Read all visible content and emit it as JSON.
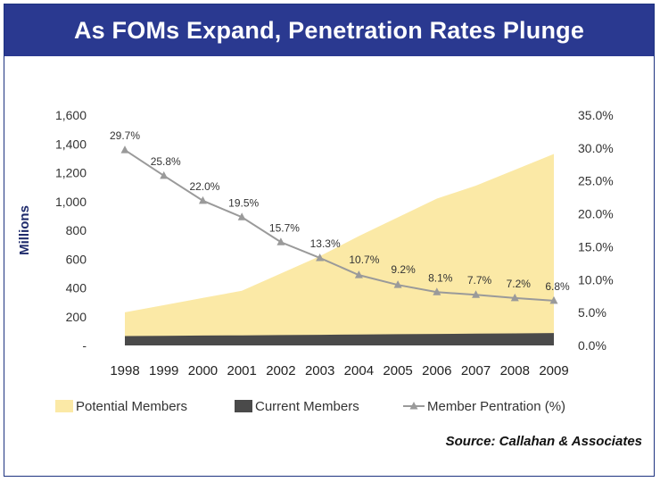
{
  "chart_data": {
    "type": "area",
    "title": "As FOMs Expand, Penetration Rates Plunge",
    "ylabel": "Millions",
    "xlabel": "",
    "categories": [
      "1998",
      "1999",
      "2000",
      "2001",
      "2002",
      "2003",
      "2004",
      "2005",
      "2006",
      "2007",
      "2008",
      "2009"
    ],
    "ylim": [
      0,
      1600
    ],
    "y_ticks": [
      0,
      200,
      400,
      600,
      800,
      1000,
      1200,
      1400,
      1600
    ],
    "y_tick_labels": [
      "-",
      "200",
      "400",
      "600",
      "800",
      "1,000",
      "1,200",
      "1,400",
      "1,600"
    ],
    "y2lim": [
      0,
      35
    ],
    "y2_ticks": [
      0,
      5,
      10,
      15,
      20,
      25,
      30,
      35
    ],
    "y2_tick_labels": [
      "0.0%",
      "5.0%",
      "10.0%",
      "15.0%",
      "20.0%",
      "25.0%",
      "30.0%",
      "35.0%"
    ],
    "series": [
      {
        "name": "Potential Members",
        "kind": "area",
        "axis": "left",
        "color": "#fbe9a6",
        "values": [
          230,
          280,
          330,
          380,
          500,
          620,
          760,
          890,
          1020,
          1110,
          1220,
          1330
        ]
      },
      {
        "name": "Current Members",
        "kind": "area",
        "axis": "left",
        "color": "#4a4a4a",
        "values": [
          65,
          67,
          69,
          70,
          72,
          74,
          76,
          78,
          80,
          82,
          84,
          86
        ]
      },
      {
        "name": "Member Pentration (%)",
        "kind": "line",
        "axis": "right",
        "color": "#9a9a9a",
        "values": [
          29.7,
          25.8,
          22.0,
          19.5,
          15.7,
          13.3,
          10.7,
          9.2,
          8.1,
          7.7,
          7.2,
          6.8
        ],
        "labels": [
          "29.7%",
          "25.8%",
          "22.0%",
          "19.5%",
          "15.7%",
          "13.3%",
          "10.7%",
          "9.2%",
          "8.1%",
          "7.7%",
          "7.2%",
          "6.8%"
        ]
      }
    ],
    "legend": "bottom",
    "source": "Source: Callahan & Associates"
  }
}
